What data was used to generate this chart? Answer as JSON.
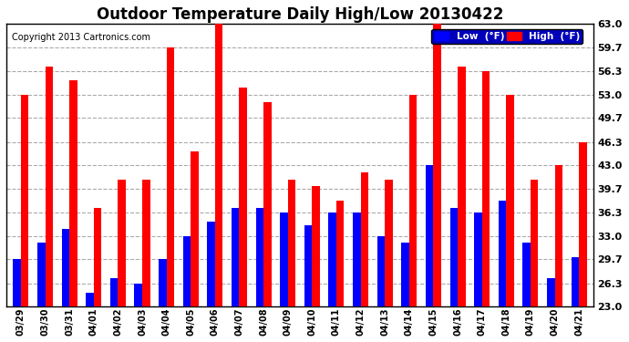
{
  "title": "Outdoor Temperature Daily High/Low 20130422",
  "copyright": "Copyright 2013 Cartronics.com",
  "legend_low": "Low  (°F)",
  "legend_high": "High  (°F)",
  "low_color": "#0000ff",
  "high_color": "#ff0000",
  "background_color": "#ffffff",
  "ylim": [
    23.0,
    63.0
  ],
  "ybase": 23.0,
  "yticks": [
    23.0,
    26.3,
    29.7,
    33.0,
    36.3,
    39.7,
    43.0,
    46.3,
    49.7,
    53.0,
    56.3,
    59.7,
    63.0
  ],
  "categories": [
    "03/29",
    "03/30",
    "03/31",
    "04/01",
    "04/02",
    "04/03",
    "04/04",
    "04/05",
    "04/06",
    "04/07",
    "04/08",
    "04/09",
    "04/10",
    "04/11",
    "04/12",
    "04/13",
    "04/14",
    "04/15",
    "04/16",
    "04/17",
    "04/18",
    "04/19",
    "04/20",
    "04/21"
  ],
  "highs": [
    53.0,
    57.0,
    55.0,
    37.0,
    41.0,
    41.0,
    59.7,
    45.0,
    63.0,
    54.0,
    52.0,
    41.0,
    40.0,
    38.0,
    42.0,
    41.0,
    53.0,
    63.0,
    57.0,
    56.3,
    53.0,
    41.0,
    43.0,
    46.3
  ],
  "lows": [
    29.7,
    32.0,
    34.0,
    25.0,
    27.0,
    26.3,
    29.7,
    33.0,
    35.0,
    37.0,
    37.0,
    36.3,
    34.5,
    36.3,
    36.3,
    33.0,
    32.0,
    43.0,
    37.0,
    36.3,
    38.0,
    32.0,
    27.0,
    30.0
  ]
}
